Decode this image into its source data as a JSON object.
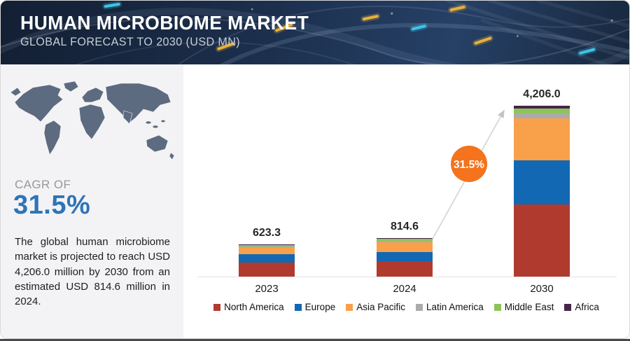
{
  "header": {
    "title": "HUMAN MICROBIOME MARKET",
    "subtitle": "GLOBAL FORECAST TO 2030 (USD MN)"
  },
  "sidebar": {
    "map_icon": "world-map",
    "cagr_label": "CAGR OF",
    "cagr_value": "31.5%",
    "description": "The global human microbiome market is projected to reach USD 4,206.0 million by 2030 from an estimated USD 814.6 million in 2024."
  },
  "chart_data": {
    "type": "bar",
    "stacked": true,
    "title": "Human Microbiome Market — Global Forecast to 2030 (USD MN)",
    "categories": [
      "2023",
      "2024",
      "2030"
    ],
    "totals": [
      623.3,
      814.6,
      4206.0
    ],
    "total_labels": [
      "623.3",
      "814.6",
      "4,206.0"
    ],
    "series": [
      {
        "name": "North America",
        "color": "#b13a2e",
        "values": [
          267,
          330,
          1776
        ]
      },
      {
        "name": "Europe",
        "color": "#1268b3",
        "values": [
          172,
          193,
          1081
        ]
      },
      {
        "name": "Asia Pacific",
        "color": "#f9a04b",
        "values": [
          118,
          198,
          1034
        ]
      },
      {
        "name": "Latin America",
        "color": "#ababab",
        "values": [
          27,
          39,
          126
        ]
      },
      {
        "name": "Middle East",
        "color": "#8dc459",
        "values": [
          26,
          35,
          120
        ]
      },
      {
        "name": "Africa",
        "color": "#46254a",
        "values": [
          13.3,
          19.6,
          69
        ]
      }
    ],
    "segment_values_estimated": true,
    "growth_badge": "31.5%",
    "legend_position": "bottom",
    "grid": false,
    "baseline_axis": true,
    "xlabel": "",
    "ylabel": ""
  },
  "colors": {
    "banner_bg": "#1b2e4b",
    "accent_blue": "#2e74b8",
    "badge_orange": "#f4731c",
    "panel_bg": "#f3f3f5",
    "map_fill": "#5d6b80",
    "arrow_gray": "#c9c9c9"
  }
}
